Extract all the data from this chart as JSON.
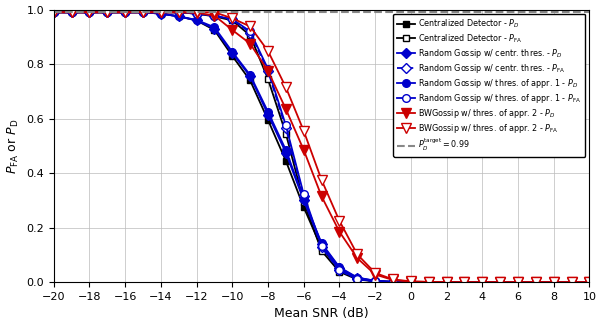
{
  "snr": [
    -20,
    -19,
    -18,
    -17,
    -16,
    -15,
    -14,
    -13,
    -12,
    -11,
    -10,
    -9,
    -8,
    -7,
    -6,
    -5,
    -4,
    -3,
    -2,
    -1,
    0,
    1,
    2,
    3,
    4,
    5,
    6,
    7,
    8,
    9,
    10
  ],
  "cent_PD": [
    0.99,
    0.99,
    0.99,
    0.99,
    0.99,
    0.99,
    0.985,
    0.975,
    0.96,
    0.925,
    0.83,
    0.74,
    0.595,
    0.445,
    0.275,
    0.125,
    0.048,
    0.014,
    0.004,
    0.001,
    0.0,
    0.0,
    0.0,
    0.0,
    0.0,
    0.0,
    0.0,
    0.0,
    0.0,
    0.0,
    0.0
  ],
  "cent_PFA": [
    0.99,
    0.99,
    0.99,
    0.99,
    0.99,
    0.99,
    0.99,
    0.99,
    0.985,
    0.975,
    0.96,
    0.905,
    0.745,
    0.545,
    0.295,
    0.115,
    0.038,
    0.01,
    0.003,
    0.001,
    0.0,
    0.0,
    0.0,
    0.0,
    0.0,
    0.0,
    0.0,
    0.0,
    0.0,
    0.0,
    0.0
  ],
  "rg_cent_PD": [
    0.99,
    0.99,
    0.99,
    0.99,
    0.99,
    0.99,
    0.985,
    0.975,
    0.96,
    0.93,
    0.84,
    0.755,
    0.615,
    0.475,
    0.3,
    0.14,
    0.052,
    0.016,
    0.005,
    0.001,
    0.0,
    0.0,
    0.0,
    0.0,
    0.0,
    0.0,
    0.0,
    0.0,
    0.0,
    0.0,
    0.0
  ],
  "rg_cent_PFA": [
    0.99,
    0.99,
    0.99,
    0.99,
    0.99,
    0.99,
    0.99,
    0.99,
    0.985,
    0.977,
    0.964,
    0.915,
    0.775,
    0.565,
    0.315,
    0.128,
    0.043,
    0.011,
    0.003,
    0.001,
    0.0,
    0.0,
    0.0,
    0.0,
    0.0,
    0.0,
    0.0,
    0.0,
    0.0,
    0.0,
    0.0
  ],
  "rg_appr1_PD": [
    0.99,
    0.99,
    0.99,
    0.99,
    0.99,
    0.99,
    0.985,
    0.975,
    0.962,
    0.935,
    0.845,
    0.76,
    0.625,
    0.485,
    0.305,
    0.143,
    0.055,
    0.017,
    0.005,
    0.001,
    0.0,
    0.0,
    0.0,
    0.0,
    0.0,
    0.0,
    0.0,
    0.0,
    0.0,
    0.0,
    0.0
  ],
  "rg_appr1_PFA": [
    0.99,
    0.99,
    0.99,
    0.99,
    0.99,
    0.99,
    0.99,
    0.99,
    0.985,
    0.977,
    0.965,
    0.92,
    0.782,
    0.575,
    0.322,
    0.132,
    0.045,
    0.012,
    0.003,
    0.001,
    0.0,
    0.0,
    0.0,
    0.0,
    0.0,
    0.0,
    0.0,
    0.0,
    0.0,
    0.0,
    0.0
  ],
  "bw_appr2_PD": [
    0.99,
    0.99,
    0.99,
    0.99,
    0.99,
    0.99,
    0.99,
    0.99,
    0.988,
    0.978,
    0.925,
    0.875,
    0.775,
    0.635,
    0.485,
    0.315,
    0.185,
    0.088,
    0.028,
    0.008,
    0.002,
    0.001,
    0.0,
    0.0,
    0.0,
    0.0,
    0.0,
    0.0,
    0.0,
    0.0,
    0.0
  ],
  "bw_appr2_PFA": [
    0.99,
    0.99,
    0.99,
    0.99,
    0.99,
    0.99,
    0.99,
    0.99,
    0.99,
    0.99,
    0.968,
    0.938,
    0.848,
    0.715,
    0.555,
    0.375,
    0.225,
    0.102,
    0.034,
    0.01,
    0.003,
    0.001,
    0.0,
    0.0,
    0.0,
    0.0,
    0.0,
    0.0,
    0.0,
    0.0,
    0.0
  ],
  "target_line": 0.99,
  "xlim": [
    -20,
    10
  ],
  "ylim": [
    0,
    1.0
  ],
  "xlabel": "Mean SNR (dB)",
  "ylabel": "$P_{\\mathrm{FA}}$ or $P_\\mathrm{D}$",
  "legend_entries": [
    "Centralized Detector - $P_D$",
    "Centralized Detector - $P_{\\mathrm{FA}}$",
    "Random Gossip w/ centr. thres. - $P_D$",
    "Random Gossip w/ centr. thres. - $P_{\\mathrm{FA}}$",
    "Random Gossip w/ thres. of appr. 1 - $P_D$",
    "Random Gossip w/ thres. of appr. 1 - $P_{\\mathrm{FA}}$",
    "BWGossip w/ thres. of appr. 2 - $P_D$",
    "BWGossip w/ thres. of appr. 2 - $P_{\\mathrm{FA}}$",
    "$P_D^{\\mathrm{target}} = 0.99$"
  ],
  "colors": {
    "black": "#000000",
    "blue": "#0000cc",
    "red": "#cc0000",
    "gray": "#888888"
  }
}
